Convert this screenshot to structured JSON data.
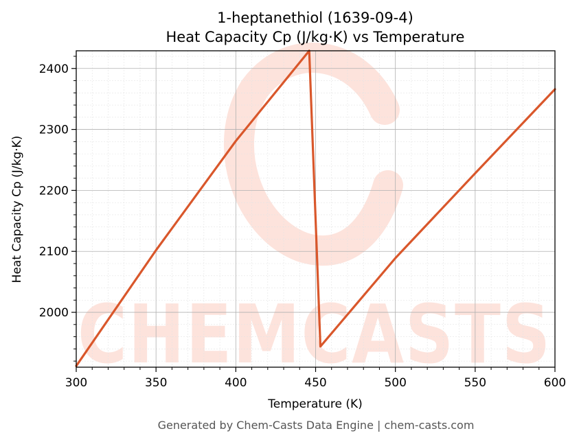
{
  "chart_data": {
    "type": "line",
    "title": "1-heptanethiol (1639-09-4)",
    "subtitle": "Heat Capacity Cp (J/kg·K) vs Temperature",
    "xlabel": "Temperature (K)",
    "ylabel": "Heat Capacity Cp (J/kg·K)",
    "xlim": [
      300,
      600
    ],
    "ylim": [
      1910,
      2429
    ],
    "xticks": [
      300,
      350,
      400,
      450,
      500,
      550,
      600
    ],
    "yticks": [
      2000,
      2100,
      2200,
      2300,
      2400
    ],
    "grid": true,
    "legend": "none",
    "series": [
      {
        "color": "#d9572b",
        "x": [
          300,
          350,
          400,
          446,
          453,
          500,
          550,
          600
        ],
        "y": [
          1912,
          2102,
          2281,
          2429,
          1944,
          2089,
          2228,
          2366
        ]
      }
    ]
  },
  "watermark": {
    "text": "CHEMCASTS",
    "color": "#fde3dc"
  },
  "footer": "Generated by Chem-Casts Data Engine | chem-casts.com"
}
